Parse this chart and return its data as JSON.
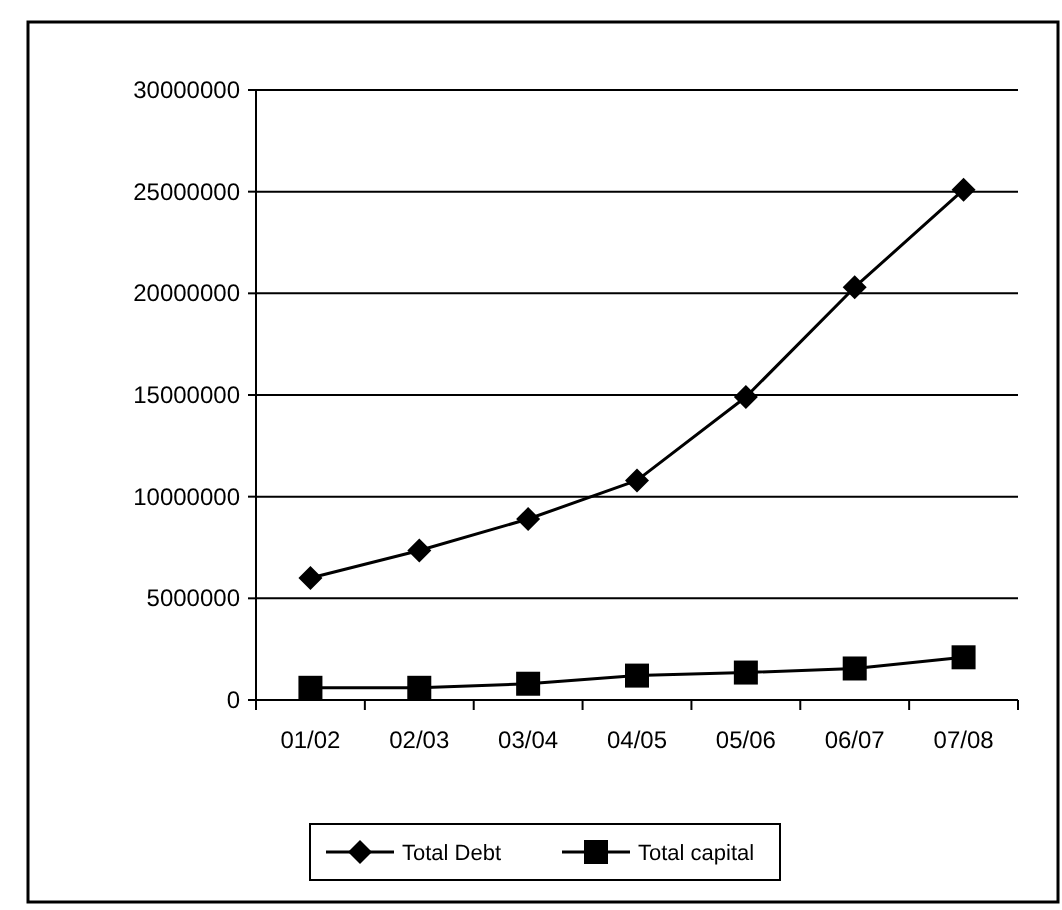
{
  "chart_data": {
    "type": "line",
    "categories": [
      "01/02",
      "02/03",
      "03/04",
      "04/05",
      "05/06",
      "06/07",
      "07/08"
    ],
    "series": [
      {
        "name": "Total Debt",
        "color": "#000000",
        "marker": "diamond",
        "values": [
          6000000,
          7350000,
          8900000,
          10800000,
          14900000,
          20300000,
          25100000
        ]
      },
      {
        "name": "Total capital",
        "color": "#000000",
        "marker": "square",
        "values": [
          600000,
          600000,
          800000,
          1200000,
          1350000,
          1550000,
          2100000
        ]
      }
    ],
    "ylim": [
      0,
      30000000
    ],
    "yticks": [
      0,
      5000000,
      10000000,
      15000000,
      20000000,
      25000000,
      30000000
    ],
    "grid": "y",
    "legend": "bottom"
  }
}
